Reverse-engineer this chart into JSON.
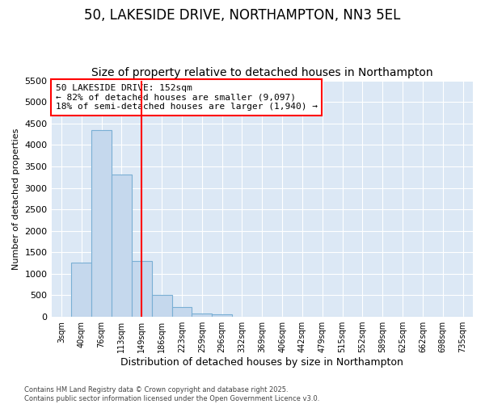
{
  "title1": "50, LAKESIDE DRIVE, NORTHAMPTON, NN3 5EL",
  "title2": "Size of property relative to detached houses in Northampton",
  "xlabel": "Distribution of detached houses by size in Northampton",
  "ylabel": "Number of detached properties",
  "footnote1": "Contains HM Land Registry data © Crown copyright and database right 2025.",
  "footnote2": "Contains public sector information licensed under the Open Government Licence v3.0.",
  "categories": [
    "3sqm",
    "40sqm",
    "76sqm",
    "113sqm",
    "149sqm",
    "186sqm",
    "223sqm",
    "259sqm",
    "296sqm",
    "332sqm",
    "369sqm",
    "406sqm",
    "442sqm",
    "479sqm",
    "515sqm",
    "552sqm",
    "589sqm",
    "625sqm",
    "662sqm",
    "698sqm",
    "735sqm"
  ],
  "values": [
    0,
    1270,
    4350,
    3310,
    1290,
    500,
    220,
    80,
    50,
    0,
    0,
    0,
    0,
    0,
    0,
    0,
    0,
    0,
    0,
    0,
    0
  ],
  "bar_color": "#c5d8ed",
  "bar_edge_color": "#7aafd4",
  "vline_x_index": 4,
  "vline_color": "red",
  "annotation_box_text": "50 LAKESIDE DRIVE: 152sqm\n← 82% of detached houses are smaller (9,097)\n18% of semi-detached houses are larger (1,940) →",
  "annotation_box_color": "red",
  "annotation_box_facecolor": "white",
  "ylim": [
    0,
    5500
  ],
  "yticks": [
    0,
    500,
    1000,
    1500,
    2000,
    2500,
    3000,
    3500,
    4000,
    4500,
    5000,
    5500
  ],
  "fig_bg_color": "#ffffff",
  "plot_bg_color": "#dce8f5",
  "grid_color": "#ffffff",
  "title1_fontsize": 12,
  "title2_fontsize": 10,
  "ylabel_fontsize": 8,
  "xlabel_fontsize": 9
}
